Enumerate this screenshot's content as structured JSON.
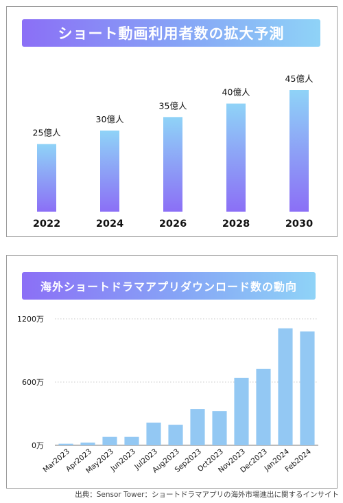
{
  "chart_data": [
    {
      "type": "bar",
      "title": "ショート動画利用者数の拡大予測",
      "categories": [
        "2022",
        "2024",
        "2026",
        "2028",
        "2030"
      ],
      "values": [
        25,
        30,
        35,
        40,
        45
      ],
      "data_labels": [
        "25億人",
        "30億人",
        "35億人",
        "40億人",
        "45億人"
      ],
      "ylim": [
        0,
        45
      ],
      "grid": false,
      "colors": {
        "bar_top": "#8fd3f7",
        "bar_bottom": "#8b6ff6"
      }
    },
    {
      "type": "bar",
      "title": "海外ショートドラマアプリダウンロード数の動向",
      "categories": [
        "Mar2023",
        "Apr2023",
        "May2023",
        "Jun2023",
        "Jul2023",
        "Aug2023",
        "Sep2023",
        "Oct2023",
        "Nov2023",
        "Dec2023",
        "Jan2024",
        "Feb2024"
      ],
      "values": [
        15,
        25,
        80,
        80,
        215,
        195,
        345,
        325,
        640,
        725,
        1110,
        1080
      ],
      "ylim": [
        0,
        1200
      ],
      "yticks": [
        0,
        600,
        1200
      ],
      "ytick_labels": [
        "0万",
        "600万",
        "1200万"
      ],
      "grid": true,
      "colors": {
        "bar": "#93c8f3",
        "grid": "#c8c8c8"
      }
    }
  ],
  "source_note": "出典：Sensor Tower：ショートドラマアプリの海外市場進出に関するインサイト"
}
